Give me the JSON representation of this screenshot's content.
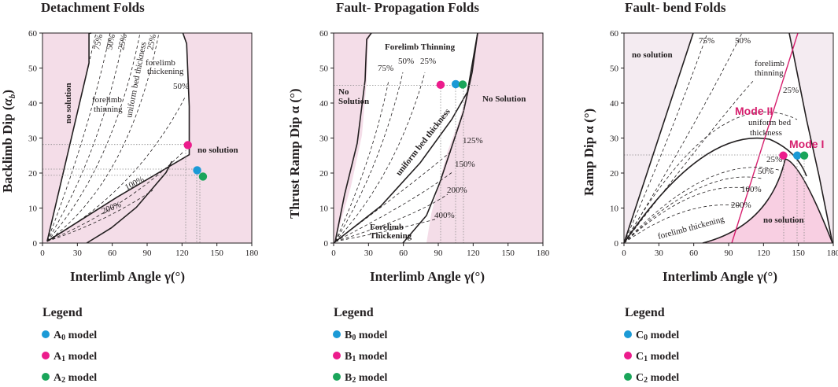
{
  "colors": {
    "pink_region": "#f4dde8",
    "pink_region_strong": "#f8cfe2",
    "white": "#ffffff",
    "blue": "#1b9ad6",
    "magenta": "#ec1c8c",
    "green": "#1aa55a",
    "red_line": "#d6206e"
  },
  "chart_data": [
    {
      "type": "scatter",
      "title": "Detachment Folds",
      "xlabel": "Interlimb Angle γ(°)",
      "ylabel": "Backlimb Dip (α_b)",
      "ylabel_parts": {
        "main": "Backlimb Dip (",
        "sym": "α",
        "sub": "b",
        "close": ")"
      },
      "xlim": [
        0,
        180
      ],
      "ylim": [
        0,
        60
      ],
      "xticks": [
        "0",
        "30",
        "60",
        "90",
        "120",
        "150",
        "180"
      ],
      "yticks": [
        "0",
        "10",
        "20",
        "30",
        "40",
        "50",
        "60"
      ],
      "points": [
        {
          "name": "A0 model",
          "color": "blue",
          "x": 133,
          "y": 20.8
        },
        {
          "name": "A1 model",
          "color": "magenta",
          "x": 125,
          "y": 28.0
        },
        {
          "name": "A2 model",
          "color": "green",
          "x": 138,
          "y": 19.0
        }
      ],
      "annotations": {
        "no_solution_left": "no solution",
        "no_solution_right": "no solution",
        "forelimb_thinning": [
          "forelimb",
          "thinning"
        ],
        "uniform": "uniform bed thickness",
        "forelimb_thickening": [
          "forelimb",
          "thickening"
        ],
        "pct": [
          "75%",
          "50%",
          "25%",
          "25%",
          "50%",
          "100%",
          "200%"
        ]
      },
      "legend": {
        "title": "Legend",
        "items": [
          {
            "color": "blue",
            "base": "A",
            "sub": "0",
            "rest": " model"
          },
          {
            "color": "magenta",
            "base": "A",
            "sub": "1",
            "rest": " model"
          },
          {
            "color": "green",
            "base": "A",
            "sub": "2",
            "rest": " model"
          }
        ]
      }
    },
    {
      "type": "scatter",
      "title": "Fault- Propagation Folds",
      "xlabel": "Interlimb Angle γ(°)",
      "ylabel": "Thrust Ramp Dip α (°)",
      "xlim": [
        0,
        180
      ],
      "ylim": [
        0,
        60
      ],
      "xticks": [
        "0",
        "30",
        "60",
        "90",
        "120",
        "150",
        "180"
      ],
      "yticks": [
        "0",
        "10",
        "20",
        "30",
        "40",
        "50",
        "60"
      ],
      "points": [
        {
          "name": "B1 model",
          "color": "magenta",
          "x": 92,
          "y": 45.2
        },
        {
          "name": "B0 model",
          "color": "blue",
          "x": 105,
          "y": 45.4
        },
        {
          "name": "B2 model",
          "color": "green",
          "x": 111,
          "y": 45.3
        }
      ],
      "annotations": {
        "no_solution_left": [
          "No",
          "Solution"
        ],
        "no_solution_right": "No Solution",
        "forelimb_thinning": "Forelimb Thinning",
        "uniform": "uniform bed thickness",
        "forelimb_thickening": [
          "Forelimb",
          "Thickening"
        ],
        "pct": [
          "75%",
          "50%",
          "25%",
          "125%",
          "150%",
          "200%",
          "400%"
        ]
      },
      "legend": {
        "title": "Legend",
        "items": [
          {
            "color": "blue",
            "base": "B",
            "sub": "0",
            "rest": " model"
          },
          {
            "color": "magenta",
            "base": "B",
            "sub": "1",
            "rest": " model"
          },
          {
            "color": "green",
            "base": "B",
            "sub": "2",
            "rest": " model"
          }
        ]
      }
    },
    {
      "type": "scatter",
      "title": "Fault- bend Folds",
      "xlabel": "Interlimb Angle γ(°)",
      "ylabel": "Ramp Dip α (°)",
      "xlim": [
        0,
        180
      ],
      "ylim": [
        0,
        60
      ],
      "xticks": [
        "0",
        "30",
        "60",
        "90",
        "120",
        "150",
        "180"
      ],
      "yticks": [
        "0",
        "10",
        "20",
        "30",
        "40",
        "50",
        "60"
      ],
      "points": [
        {
          "name": "C1 model",
          "color": "magenta",
          "x": 137,
          "y": 25.0
        },
        {
          "name": "C0 model",
          "color": "blue",
          "x": 149,
          "y": 25.0
        },
        {
          "name": "C2 model",
          "color": "green",
          "x": 155,
          "y": 25.0
        }
      ],
      "annotations": {
        "no_solution_top": "no solution",
        "no_solution_bottom": "no solution",
        "forelimb_thinning": [
          "forelimb",
          "thinning"
        ],
        "uniform": [
          "uniform bed",
          "thickness"
        ],
        "forelimb_thickening": "forelimb thickening",
        "mode2": "Mode II",
        "mode1": "Mode I",
        "pct": [
          "75%",
          "50%",
          "25%",
          "25%",
          "50%",
          "100%",
          "200%"
        ]
      },
      "legend": {
        "title": "Legend",
        "items": [
          {
            "color": "blue",
            "base": "C",
            "sub": "0",
            "rest": " model"
          },
          {
            "color": "magenta",
            "base": "C",
            "sub": "1",
            "rest": " model"
          },
          {
            "color": "green",
            "base": "C",
            "sub": "2",
            "rest": " model"
          }
        ]
      }
    }
  ]
}
